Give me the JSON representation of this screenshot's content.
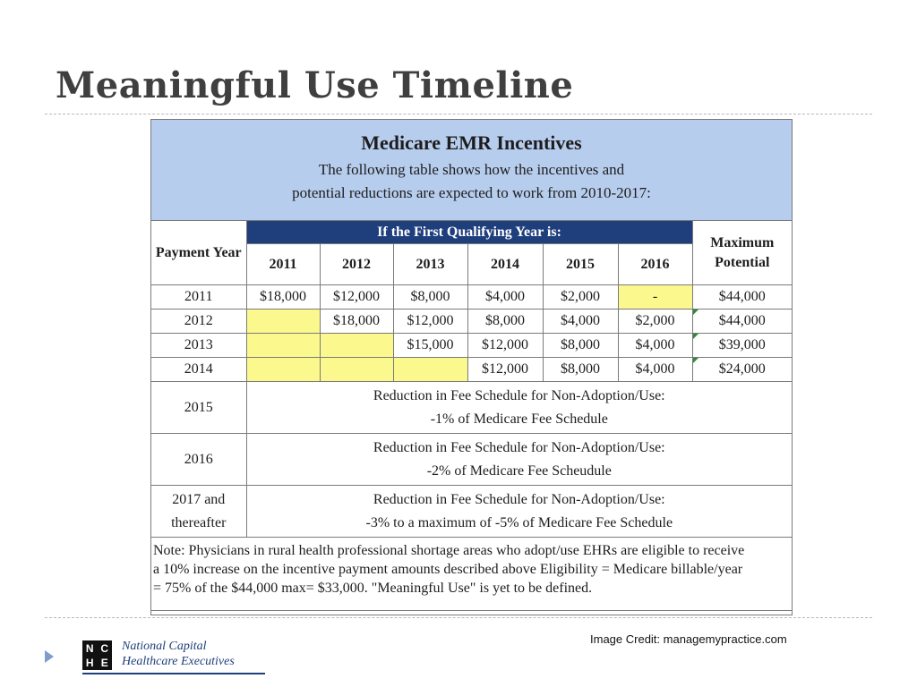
{
  "slide": {
    "title": "Meaningful Use Timeline",
    "credit": "Image Credit: managemypractice.com"
  },
  "table": {
    "title": "Medicare EMR Incentives",
    "subtitle_line1": "The following table shows how the incentives and",
    "subtitle_line2": "potential reductions are expected to work from 2010-2017:",
    "header_band": "If the First Qualifying Year is:",
    "payment_year_label": "Payment Year",
    "max_potential_label": "Maximum Potential",
    "qualifying_years": [
      "2011",
      "2012",
      "2013",
      "2014",
      "2015",
      "2016"
    ],
    "rows": [
      {
        "year": "2011",
        "cells": [
          "$18,000",
          "$12,000",
          "$8,000",
          "$4,000",
          "$2,000",
          "-"
        ],
        "max": "$44,000"
      },
      {
        "year": "2012",
        "cells": [
          "",
          "$18,000",
          "$12,000",
          "$8,000",
          "$4,000",
          "$2,000"
        ],
        "max": "$44,000"
      },
      {
        "year": "2013",
        "cells": [
          "",
          "",
          "$15,000",
          "$12,000",
          "$8,000",
          "$4,000"
        ],
        "max": "$39,000"
      },
      {
        "year": "2014",
        "cells": [
          "",
          "",
          "",
          "$12,000",
          "$8,000",
          "$4,000"
        ],
        "max": "$24,000"
      }
    ],
    "reductions": [
      {
        "year": "2015",
        "line1": "Reduction in Fee Schedule for Non-Adoption/Use:",
        "line2": "-1% of Medicare Fee Schedule"
      },
      {
        "year": "2016",
        "line1": "Reduction in Fee Schedule for Non-Adoption/Use:",
        "line2": "-2% of Medicare Fee Scheudule"
      },
      {
        "year_line1": "2017 and",
        "year_line2": "thereafter",
        "line1": "Reduction in Fee Schedule for Non-Adoption/Use:",
        "line2": "-3% to a maximum of -5% of Medicare Fee Schedule"
      }
    ],
    "note_line1": "Note: Physicians in rural health professional shortage areas who adopt/use EHRs are eligible to receive",
    "note_line2": "a 10% increase on the incentive payment amounts described above   Eligibility = Medicare billable/year",
    "note_line3": "= 75% of the $44,000 max= $33,000. \"Meaningful Use\" is yet to be defined."
  },
  "logo": {
    "letters": [
      "N",
      "C",
      "H",
      "E"
    ],
    "line1": "National Capital",
    "line2": "Healthcare Executives"
  },
  "colors": {
    "banner": "#b7cdee",
    "header_band": "#1f3e7c",
    "highlight": "#fbf98d",
    "title_text": "#3f3f3f"
  }
}
